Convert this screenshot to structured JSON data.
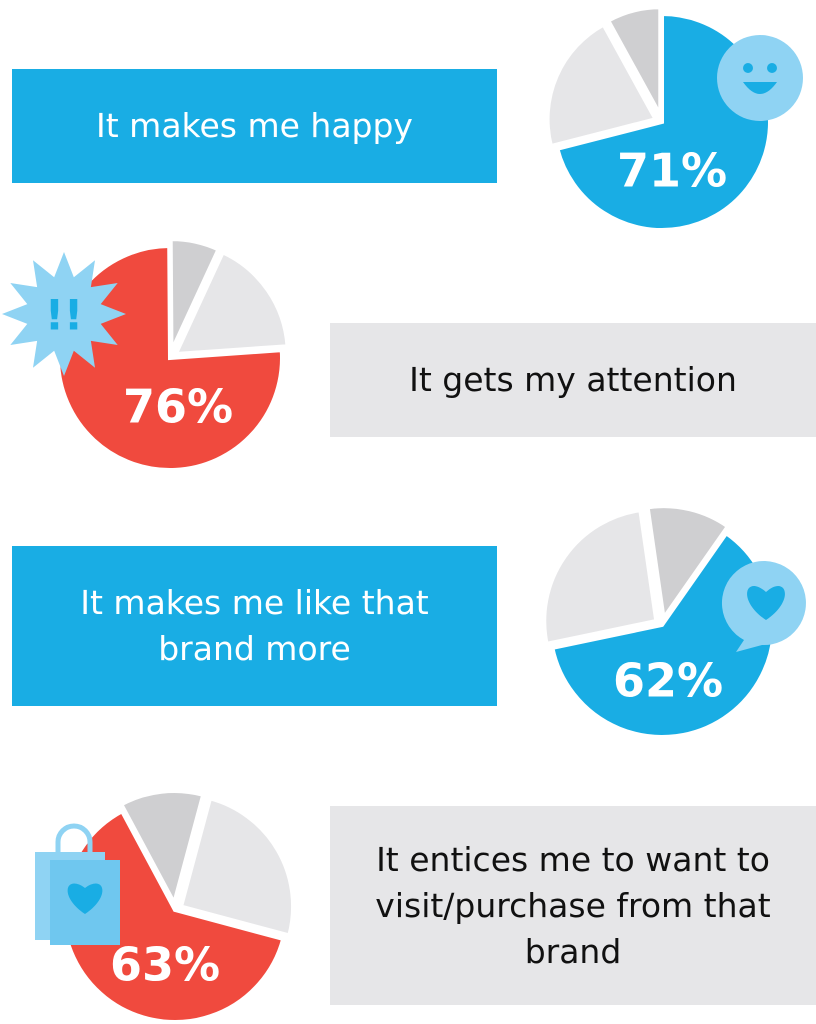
{
  "chart_data": [
    {
      "type": "pie",
      "title": "It makes me happy",
      "values": [
        71,
        21,
        8
      ],
      "value_labels": [
        "71%",
        null,
        null
      ],
      "colors": [
        "#19ade4",
        "#e6e6e8",
        "#cfcfd1"
      ]
    },
    {
      "type": "pie",
      "title": "It gets my attention",
      "values": [
        76,
        7,
        17
      ],
      "value_labels": [
        "76%",
        null,
        null
      ],
      "colors": [
        "#f04a3e",
        "#cfcfd1",
        "#e6e6e8"
      ],
      "icon_text": "!!"
    },
    {
      "type": "pie",
      "title": "It makes me like that brand more",
      "values": [
        62,
        26,
        12
      ],
      "value_labels": [
        "62%",
        null,
        null
      ],
      "colors": [
        "#19ade4",
        "#e6e6e8",
        "#cfcfd1"
      ]
    },
    {
      "type": "pie",
      "title": "It entices me to want to visit/purchase from that brand",
      "values": [
        63,
        12,
        25
      ],
      "value_labels": [
        "63%",
        null,
        null
      ],
      "colors": [
        "#f04a3e",
        "#cfcfd1",
        "#e6e6e8"
      ]
    }
  ]
}
